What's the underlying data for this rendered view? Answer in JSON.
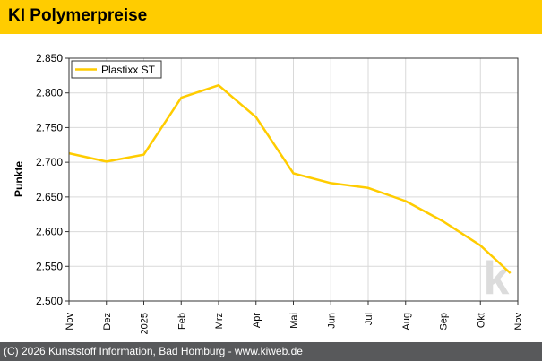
{
  "header": {
    "title": "KI Polymerpreise"
  },
  "footer": {
    "copyright": "(C) 2026 Kunststoff Information, Bad Homburg - www.kiweb.de"
  },
  "watermark": {
    "text": "k"
  },
  "colors": {
    "accent": "#ffcc00",
    "series": "#ffcc00",
    "footer_bg": "#58595b",
    "grid": "#d9d9d9"
  },
  "chart_data": {
    "type": "line",
    "ylabel": "Punkte",
    "ylim": [
      2500,
      2850
    ],
    "yticks": [
      2500,
      2550,
      2600,
      2650,
      2700,
      2750,
      2800,
      2850
    ],
    "ytick_labels": [
      "2.500",
      "2.550",
      "2.600",
      "2.650",
      "2.700",
      "2.750",
      "2.800",
      "2.850"
    ],
    "categories": [
      "Nov",
      "Dez",
      "2025",
      "Feb",
      "Mrz",
      "Apr",
      "Mai",
      "Jun",
      "Jul",
      "Aug",
      "Sep",
      "Okt",
      "Nov"
    ],
    "grid": true,
    "legend": "top-left",
    "series": [
      {
        "name": "Plastixx ST",
        "x": [
          0,
          1,
          2,
          3,
          4,
          5,
          6,
          7,
          8,
          9,
          10,
          11,
          11.8
        ],
        "values": [
          2713,
          2701,
          2711,
          2793,
          2811,
          2765,
          2684,
          2670,
          2663,
          2644,
          2615,
          2580,
          2540
        ]
      }
    ]
  }
}
